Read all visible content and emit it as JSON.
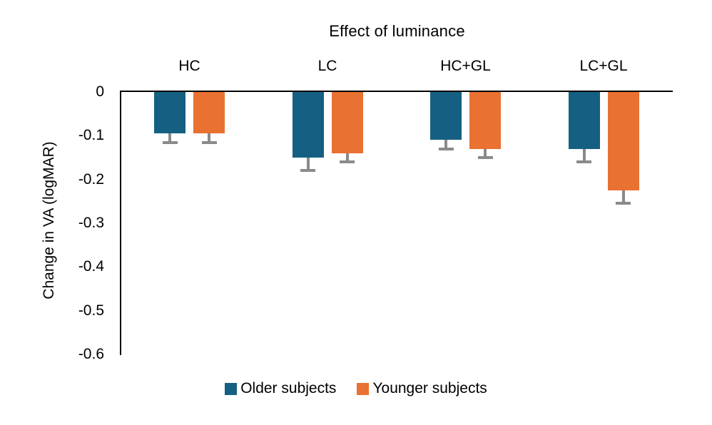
{
  "chart_data": {
    "type": "bar",
    "title": "Effect of luminance",
    "ylabel": "Change in VA (logMAR)",
    "xlabel": "",
    "categories": [
      "HC",
      "LC",
      "HC+GL",
      "LC+GL"
    ],
    "series": [
      {
        "name": "Older subjects",
        "color": "#156082",
        "values": [
          -0.095,
          -0.15,
          -0.11,
          -0.13
        ],
        "errors_minus": [
          0.02,
          0.03,
          0.02,
          0.03
        ]
      },
      {
        "name": "Younger subjects",
        "color": "#E97132",
        "values": [
          -0.095,
          -0.14,
          -0.13,
          -0.225
        ],
        "errors_minus": [
          0.02,
          0.02,
          0.02,
          0.03
        ]
      }
    ],
    "ylim": [
      0,
      -0.6
    ],
    "yticks": [
      0,
      -0.1,
      -0.2,
      -0.3,
      -0.4,
      -0.5,
      -0.6
    ],
    "ytick_labels": [
      "0",
      "-0.1",
      "-0.2",
      "-0.3",
      "-0.4",
      "-0.5",
      "-0.6"
    ],
    "grid": false,
    "legend_position": "bottom",
    "category_labels_position": "top",
    "colors": {
      "axis": "#000000",
      "error_bar": "#8A8A8A",
      "text": "#000000",
      "background": "#FFFFFF"
    }
  }
}
